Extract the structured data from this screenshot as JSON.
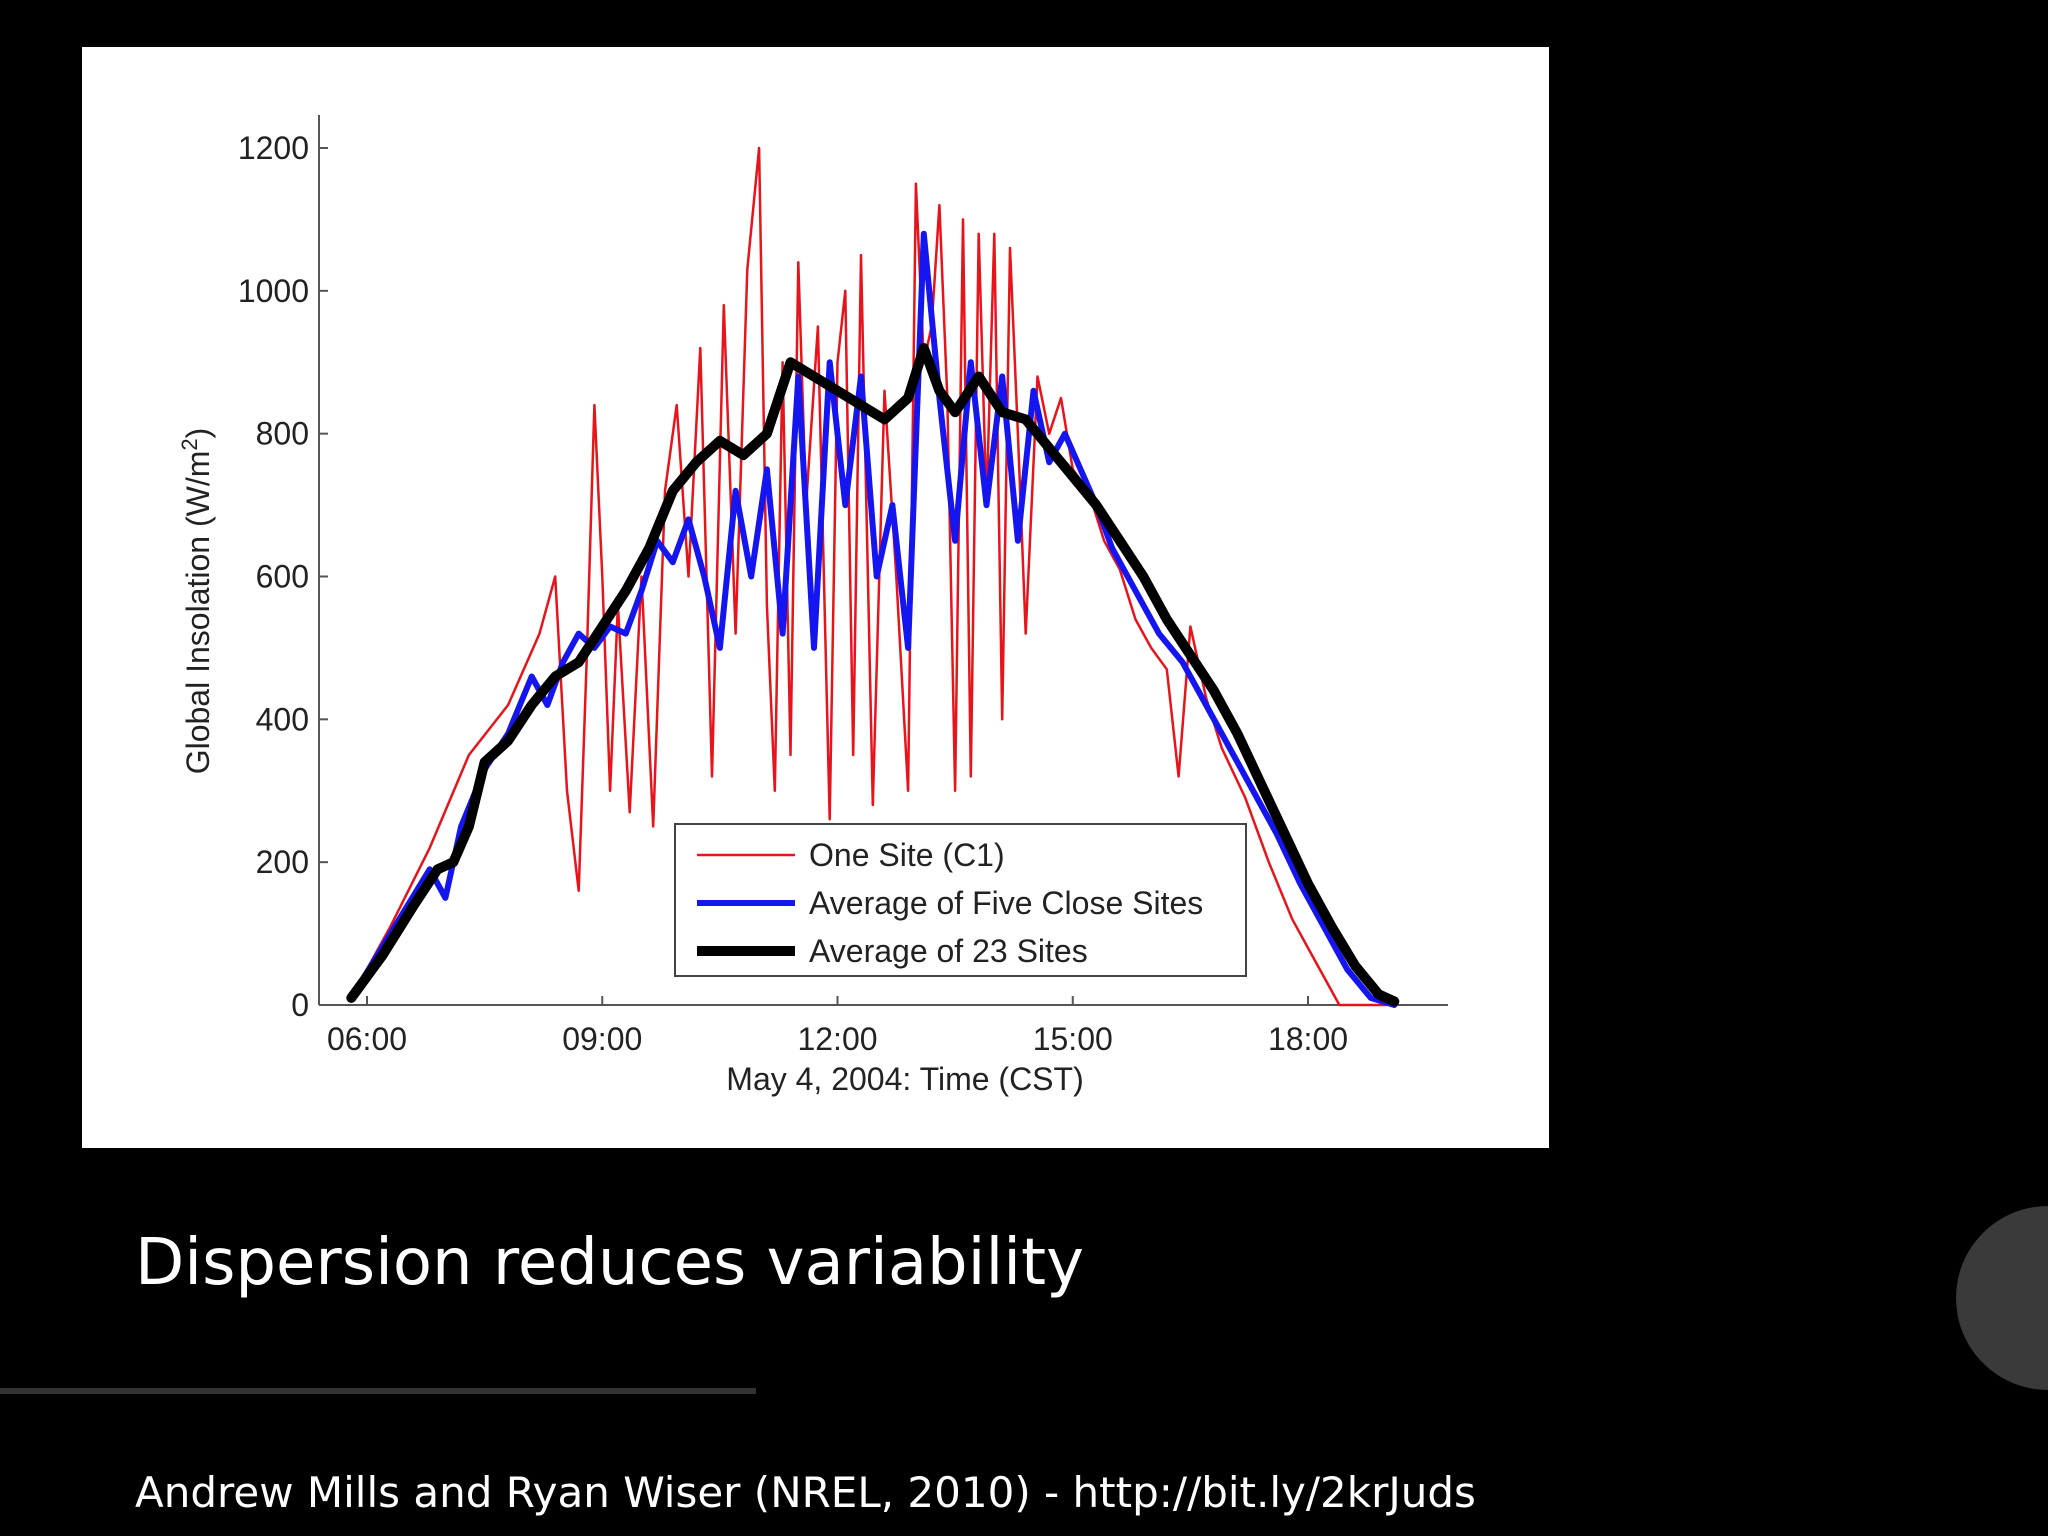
{
  "slide": {
    "title": "Dispersion reduces variability",
    "citation": "Andrew Mills and Ryan Wiser (NREL, 2010) - http://bit.ly/2krJuds"
  },
  "chart_data": {
    "type": "line",
    "xlabel": "May 4, 2004: Time (CST)",
    "ylabel": "Global Insolation (W/m",
    "ylabel_sup": "2",
    "ylabel_close": ")",
    "xlim": [
      5.5,
      20.5
    ],
    "ylim": [
      0,
      1250
    ],
    "xticks": [
      6,
      9,
      12,
      15,
      18
    ],
    "xtick_labels": [
      "06:00",
      "09:00",
      "12:00",
      "15:00",
      "18:00"
    ],
    "yticks": [
      0,
      200,
      400,
      600,
      800,
      1000,
      1200
    ],
    "ytick_labels": [
      "0",
      "200",
      "400",
      "600",
      "800",
      "1000",
      "1200"
    ],
    "legend_position": "bottom-center",
    "series": [
      {
        "name": "One Site (C1)",
        "color": "#e8141b",
        "x": [
          5.8,
          6.3,
          6.8,
          7.3,
          7.8,
          8.2,
          8.4,
          8.55,
          8.7,
          8.8,
          8.9,
          9.0,
          9.1,
          9.2,
          9.35,
          9.5,
          9.65,
          9.8,
          9.95,
          10.1,
          10.25,
          10.4,
          10.55,
          10.7,
          10.85,
          11.0,
          11.1,
          11.2,
          11.3,
          11.4,
          11.5,
          11.6,
          11.75,
          11.9,
          12.0,
          12.1,
          12.2,
          12.3,
          12.45,
          12.6,
          12.75,
          12.9,
          13.0,
          13.1,
          13.2,
          13.3,
          13.4,
          13.5,
          13.6,
          13.7,
          13.8,
          13.9,
          14.0,
          14.1,
          14.2,
          14.3,
          14.4,
          14.55,
          14.7,
          14.85,
          15.0,
          15.2,
          15.4,
          15.6,
          15.8,
          16.0,
          16.2,
          16.35,
          16.5,
          16.7,
          16.9,
          17.2,
          17.5,
          17.8,
          18.1,
          18.4,
          18.7,
          19.0
        ],
        "y": [
          10,
          110,
          220,
          350,
          420,
          520,
          600,
          300,
          160,
          480,
          840,
          600,
          300,
          560,
          270,
          600,
          250,
          720,
          840,
          600,
          920,
          320,
          980,
          520,
          1030,
          1200,
          560,
          300,
          900,
          350,
          1040,
          700,
          950,
          260,
          900,
          1000,
          350,
          1050,
          280,
          860,
          600,
          300,
          1150,
          900,
          950,
          1120,
          850,
          300,
          1100,
          320,
          1080,
          700,
          1080,
          400,
          1060,
          800,
          520,
          880,
          800,
          850,
          750,
          720,
          650,
          610,
          540,
          500,
          470,
          320,
          530,
          430,
          360,
          290,
          200,
          120,
          60,
          0,
          0,
          0
        ]
      },
      {
        "name": "Average of Five Close Sites",
        "color": "#1515f0",
        "x": [
          5.8,
          6.3,
          6.8,
          7.0,
          7.2,
          7.5,
          7.8,
          8.1,
          8.3,
          8.5,
          8.7,
          8.9,
          9.1,
          9.3,
          9.5,
          9.7,
          9.9,
          10.1,
          10.3,
          10.5,
          10.7,
          10.9,
          11.1,
          11.3,
          11.5,
          11.7,
          11.9,
          12.1,
          12.3,
          12.5,
          12.7,
          12.9,
          13.1,
          13.3,
          13.5,
          13.7,
          13.9,
          14.1,
          14.3,
          14.5,
          14.7,
          14.9,
          15.1,
          15.3,
          15.5,
          15.8,
          16.1,
          16.4,
          16.7,
          17.0,
          17.3,
          17.6,
          17.9,
          18.2,
          18.5,
          18.8,
          19.1
        ],
        "y": [
          10,
          100,
          190,
          150,
          250,
          330,
          380,
          460,
          420,
          480,
          520,
          500,
          530,
          520,
          580,
          650,
          620,
          680,
          600,
          500,
          720,
          600,
          750,
          520,
          880,
          500,
          900,
          700,
          880,
          600,
          700,
          500,
          1080,
          850,
          650,
          900,
          700,
          880,
          650,
          860,
          760,
          800,
          750,
          700,
          640,
          580,
          520,
          480,
          420,
          360,
          300,
          240,
          170,
          110,
          50,
          10,
          0
        ]
      },
      {
        "name": "Average of 23 Sites",
        "color": "#000000",
        "x": [
          5.8,
          6.2,
          6.6,
          6.9,
          7.1,
          7.3,
          7.5,
          7.8,
          8.1,
          8.4,
          8.7,
          9.0,
          9.3,
          9.6,
          9.9,
          10.2,
          10.5,
          10.8,
          11.1,
          11.4,
          11.7,
          12.0,
          12.3,
          12.6,
          12.9,
          13.1,
          13.3,
          13.5,
          13.8,
          14.1,
          14.4,
          14.7,
          15.0,
          15.3,
          15.6,
          15.9,
          16.2,
          16.5,
          16.8,
          17.1,
          17.4,
          17.7,
          18.0,
          18.3,
          18.6,
          18.9,
          19.1
        ],
        "y": [
          10,
          70,
          140,
          190,
          200,
          250,
          340,
          370,
          420,
          460,
          480,
          530,
          580,
          640,
          720,
          760,
          790,
          770,
          800,
          900,
          880,
          860,
          840,
          820,
          850,
          920,
          860,
          830,
          880,
          830,
          820,
          780,
          740,
          700,
          650,
          600,
          540,
          490,
          440,
          380,
          310,
          240,
          170,
          110,
          55,
          15,
          5
        ]
      }
    ]
  }
}
